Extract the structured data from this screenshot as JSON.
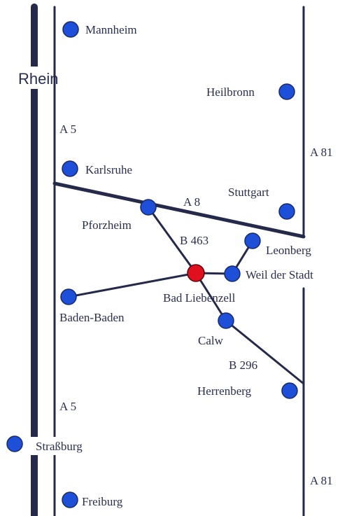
{
  "river": "Rhein",
  "highways": {
    "a5_north": "A 5",
    "a5_south": "A 5",
    "a81_north": "A 81",
    "a81_south": "A 81",
    "a8": "A 8",
    "b463": "B 463",
    "b296": "B 296"
  },
  "cities": {
    "mannheim": "Mannheim",
    "heilbronn": "Heilbronn",
    "karlsruhe": "Karlsruhe",
    "stuttgart": "Stuttgart",
    "pforzheim": "Pforzheim",
    "leonberg": "Leonberg",
    "weil_der_stadt": "Weil der Stadt",
    "bad_liebenzell": "Bad Liebenzell",
    "baden_baden": "Baden-Baden",
    "calw": "Calw",
    "herrenberg": "Herrenberg",
    "strassburg": "Straßburg",
    "freiburg": "Freiburg"
  },
  "colors": {
    "city": "#1e4fd8",
    "destination": "#e0101e",
    "road": "#252a4a"
  }
}
